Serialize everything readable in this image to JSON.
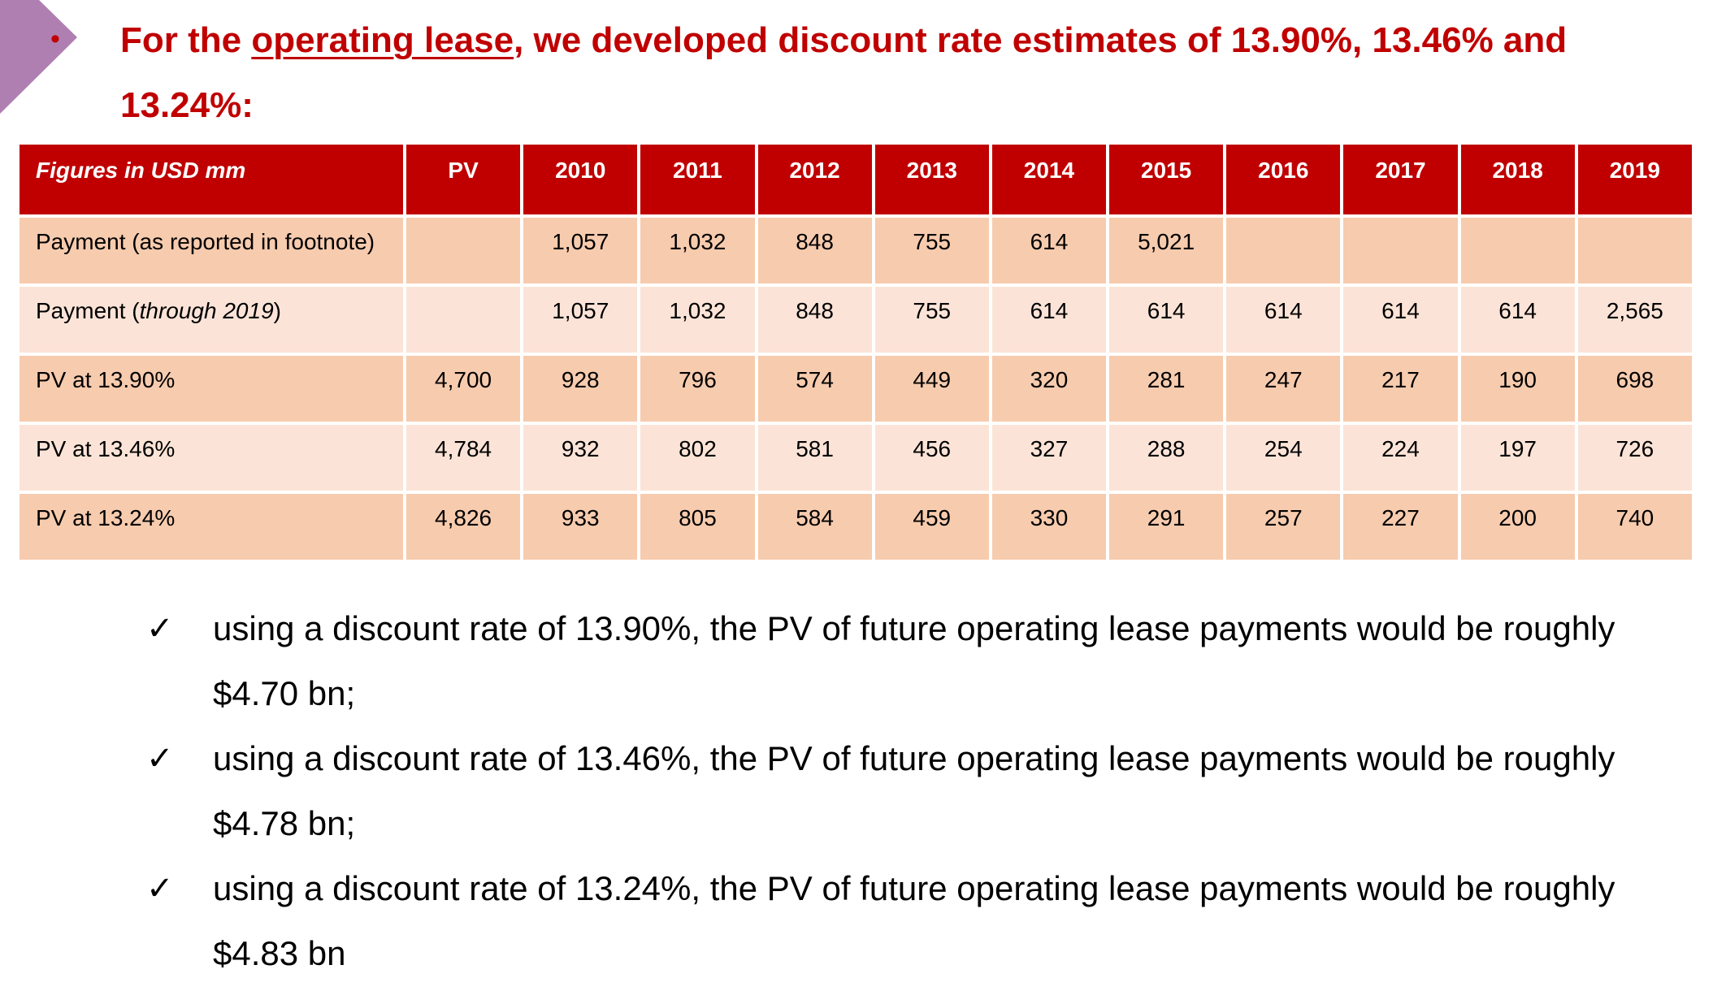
{
  "heading": {
    "prefix": "For the ",
    "underlined": "operating lease",
    "suffix": ", we developed discount rate estimates of 13.90%, 13.46% and 13.24%:"
  },
  "table": {
    "header": [
      "Figures in USD mm",
      "PV",
      "2010",
      "2011",
      "2012",
      "2013",
      "2014",
      "2015",
      "2016",
      "2017",
      "2018",
      "2019"
    ],
    "rows": [
      {
        "label": "Payment (as reported in footnote)",
        "cells": [
          "",
          "1,057",
          "1,032",
          "848",
          "755",
          "614",
          "5,021",
          "",
          "",
          "",
          ""
        ]
      },
      {
        "label_prefix": "Payment (",
        "label_italic": "through 2019",
        "label_suffix": ")",
        "cells": [
          "",
          "1,057",
          "1,032",
          "848",
          "755",
          "614",
          "614",
          "614",
          "614",
          "614",
          "2,565"
        ]
      },
      {
        "label": "PV at 13.90%",
        "cells": [
          "4,700",
          "928",
          "796",
          "574",
          "449",
          "320",
          "281",
          "247",
          "217",
          "190",
          "698"
        ]
      },
      {
        "label": "PV at 13.46%",
        "cells": [
          "4,784",
          "932",
          "802",
          "581",
          "456",
          "327",
          "288",
          "254",
          "224",
          "197",
          "726"
        ]
      },
      {
        "label": "PV at 13.24%",
        "cells": [
          "4,826",
          "933",
          "805",
          "584",
          "459",
          "330",
          "291",
          "257",
          "227",
          "200",
          "740"
        ]
      }
    ]
  },
  "conclusions": [
    {
      "tick": "✓",
      "text": "using a discount rate of 13.90%, the PV of future operating lease payments would be roughly $4.70 bn;"
    },
    {
      "tick": "✓",
      "text": "using a discount rate of 13.46%, the PV of future operating lease payments would be roughly $4.78 bn;"
    },
    {
      "tick": "✓",
      "text": "using a discount rate of 13.24%, the PV of future operating lease payments would be roughly $4.83 bn"
    }
  ],
  "colors": {
    "accent": "#c00000",
    "row_dark": "#f7cbae",
    "row_light": "#fbe4d7",
    "corner": "#b07fb2"
  }
}
